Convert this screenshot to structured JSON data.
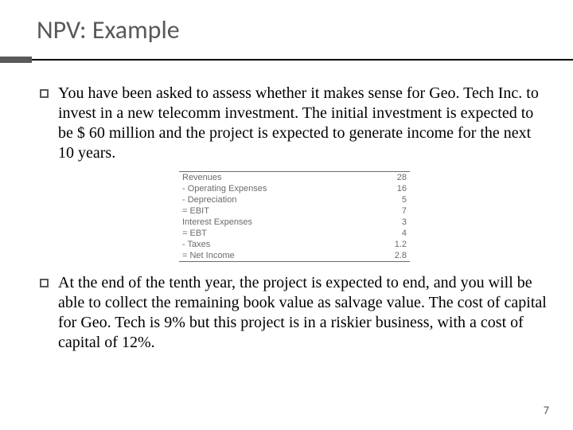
{
  "title": "NPV: Example",
  "bullets": [
    "You have been asked to assess whether it makes sense for Geo. Tech Inc. to invest in a new telecomm investment. The initial investment is expected to be $ 60 million and the project is expected to generate income for the next 10 years.",
    "At the end of the tenth year, the project is expected to end, and you will be able to collect the remaining book value as salvage value.  The cost of capital for Geo. Tech is 9% but this project is in a riskier business, with a cost of capital of 12%."
  ],
  "table": {
    "rows": [
      {
        "label": "Revenues",
        "value": "28"
      },
      {
        "label": "- Operating Expenses",
        "value": "16"
      },
      {
        "label": "- Depreciation",
        "value": "5"
      },
      {
        "label": "= EBIT",
        "value": "7"
      },
      {
        "label": "Interest Expenses",
        "value": "3"
      },
      {
        "label": "= EBT",
        "value": "4"
      },
      {
        "label": "- Taxes",
        "value": "1.2"
      },
      {
        "label": "= Net Income",
        "value": "2.8"
      }
    ]
  },
  "page": "7",
  "colors": {
    "title": "#595959",
    "rule": "#000000",
    "ruleBox": "#595959",
    "tableText": "#6b6b6b"
  }
}
